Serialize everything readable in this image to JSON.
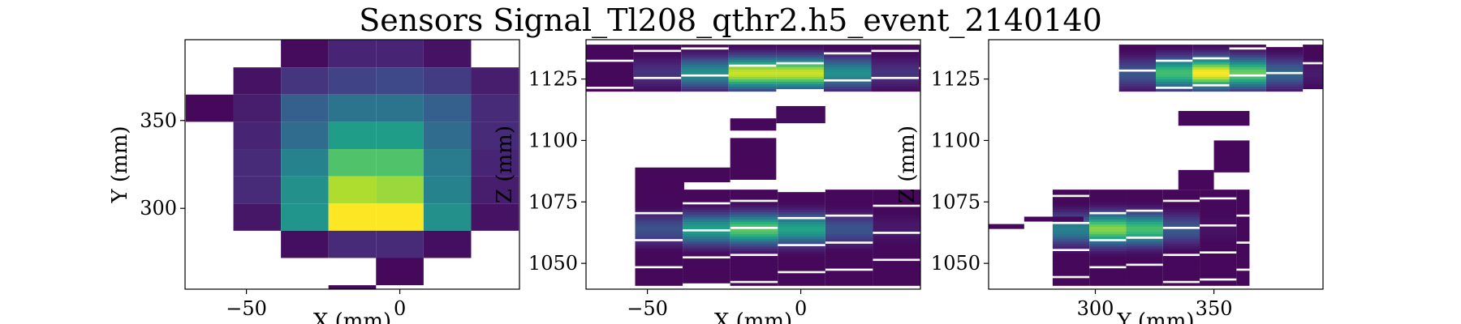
{
  "figure": {
    "title": "Sensors Signal_Tl208_qthr2.h5_event_2140140"
  },
  "chart_data": [
    {
      "type": "heatmap",
      "panel": "XY",
      "xlabel": "X (mm)",
      "ylabel": "Y (mm)",
      "xlim": [
        -70,
        39
      ],
      "ylim": [
        254,
        396
      ],
      "xticks": [
        -50,
        0
      ],
      "yticks": [
        300,
        350
      ],
      "cell_w": 15.5,
      "cell_h": 15.5,
      "cells": [
        [
          -31,
          388,
          0.03
        ],
        [
          -15.5,
          388,
          0.1
        ],
        [
          0,
          388,
          0.1
        ],
        [
          15.5,
          388,
          0.05
        ],
        [
          -46.5,
          372.5,
          0.05
        ],
        [
          -31,
          372.5,
          0.15
        ],
        [
          -15.5,
          372.5,
          0.2
        ],
        [
          0,
          372.5,
          0.22
        ],
        [
          15.5,
          372.5,
          0.18
        ],
        [
          31,
          372.5,
          0.08
        ],
        [
          -62,
          357,
          0.02
        ],
        [
          -46.5,
          357,
          0.08
        ],
        [
          -31,
          357,
          0.3
        ],
        [
          -15.5,
          357,
          0.38
        ],
        [
          0,
          357,
          0.38
        ],
        [
          15.5,
          357,
          0.3
        ],
        [
          31,
          357,
          0.12
        ],
        [
          -46.5,
          341.5,
          0.1
        ],
        [
          -31,
          341.5,
          0.35
        ],
        [
          -15.5,
          341.5,
          0.55
        ],
        [
          0,
          341.5,
          0.55
        ],
        [
          15.5,
          341.5,
          0.35
        ],
        [
          31,
          341.5,
          0.12
        ],
        [
          -46.5,
          326,
          0.12
        ],
        [
          -31,
          326,
          0.45
        ],
        [
          -15.5,
          326,
          0.72
        ],
        [
          0,
          326,
          0.72
        ],
        [
          15.5,
          326,
          0.42
        ],
        [
          31,
          326,
          0.1
        ],
        [
          -46.5,
          310.5,
          0.12
        ],
        [
          -31,
          310.5,
          0.5
        ],
        [
          -15.5,
          310.5,
          0.88
        ],
        [
          0,
          310.5,
          0.85
        ],
        [
          15.5,
          310.5,
          0.45
        ],
        [
          31,
          310.5,
          0.08
        ],
        [
          -46.5,
          295,
          0.06
        ],
        [
          -31,
          295,
          0.52
        ],
        [
          -15.5,
          295,
          1.0
        ],
        [
          0,
          295,
          1.0
        ],
        [
          15.5,
          295,
          0.5
        ],
        [
          31,
          295,
          0.05
        ],
        [
          -31,
          279.5,
          0.04
        ],
        [
          -15.5,
          279.5,
          0.12
        ],
        [
          0,
          279.5,
          0.12
        ],
        [
          15.5,
          279.5,
          0.04
        ],
        [
          0,
          264,
          0.02
        ],
        [
          -15.5,
          248.5,
          0.02
        ]
      ]
    },
    {
      "type": "heatmap",
      "panel": "XZ",
      "xlabel": "X (mm)",
      "ylabel": "Z (mm)",
      "xlim": [
        -70,
        39
      ],
      "ylim": [
        1039.5,
        1141
      ],
      "xticks": [
        -50,
        0
      ],
      "yticks": [
        1050,
        1075,
        1100,
        1125
      ],
      "bands": [
        {
          "z0": 1120,
          "z1": 1139,
          "x0": -70,
          "x1": 39,
          "peak": 1127.5,
          "intensity": 1.0,
          "center_x": -8,
          "width_x": 28
        },
        {
          "z0": 1041,
          "z1": 1080,
          "x0": -54,
          "x1": 39,
          "peak": 1064,
          "intensity": 0.75,
          "center_x": -15,
          "width_x": 30
        }
      ],
      "isolated": [
        [
          -23,
          -8,
          1104,
          1109,
          0.02
        ],
        [
          -8,
          8,
          1107,
          1114,
          0.03
        ],
        [
          -23,
          -8,
          1084,
          1101,
          0.02
        ],
        [
          -54,
          -23,
          1083,
          1089,
          0.02
        ],
        [
          -54,
          -38,
          1075,
          1083,
          0.02
        ]
      ]
    },
    {
      "type": "heatmap",
      "panel": "YZ",
      "xlabel": "Y (mm)",
      "ylabel": "Z (mm)",
      "xlim": [
        255,
        396
      ],
      "ylim": [
        1039.5,
        1141
      ],
      "xticks": [
        300,
        350
      ],
      "yticks": [
        1050,
        1075,
        1100,
        1125
      ],
      "bands": [
        {
          "z0": 1120,
          "z1": 1139,
          "x0": 310,
          "x1": 396,
          "peak": 1127.5,
          "intensity": 1.0,
          "center_x": 350,
          "width_x": 28
        },
        {
          "z0": 1041,
          "z1": 1080,
          "x0": 282,
          "x1": 365,
          "peak": 1064,
          "intensity": 0.85,
          "center_x": 310,
          "width_x": 25
        }
      ],
      "isolated": [
        [
          335,
          365,
          1106,
          1112,
          0.02
        ],
        [
          350,
          365,
          1087,
          1100,
          0.02
        ],
        [
          335,
          350,
          1080,
          1088,
          0.02
        ],
        [
          255,
          270,
          1064,
          1066,
          0.02
        ],
        [
          270,
          295,
          1067,
          1069,
          0.02
        ]
      ]
    }
  ]
}
